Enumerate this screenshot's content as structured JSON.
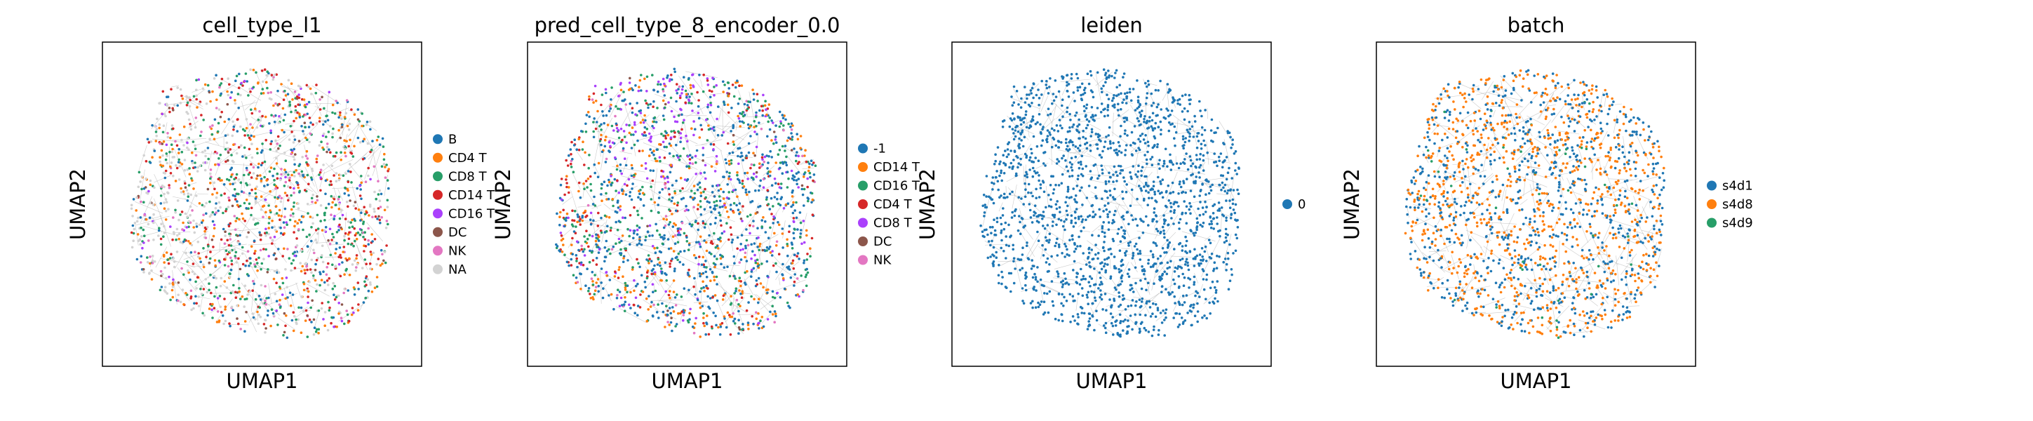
{
  "chart_data": [
    {
      "type": "scatter",
      "title": "cell_type_l1",
      "xlabel": "UMAP1",
      "ylabel": "UMAP2",
      "grid": false,
      "ticks": "none",
      "legend_placement": "right",
      "series": [
        {
          "name": "B",
          "color": "#1f77b4"
        },
        {
          "name": "CD4 T",
          "color": "#ff7f0e"
        },
        {
          "name": "CD8 T",
          "color": "#279e68"
        },
        {
          "name": "CD14 T",
          "color": "#d62728"
        },
        {
          "name": "CD16 T",
          "color": "#aa40fc"
        },
        {
          "name": "DC",
          "color": "#8c564b"
        },
        {
          "name": "NK",
          "color": "#e377c2"
        },
        {
          "name": "NA",
          "color": "#d3d3d3"
        }
      ]
    },
    {
      "type": "scatter",
      "title": "pred_cell_type_8_encoder_0.0",
      "xlabel": "UMAP1",
      "ylabel": "UMAP2",
      "grid": false,
      "ticks": "none",
      "legend_placement": "right",
      "series": [
        {
          "name": "-1",
          "color": "#1f77b4"
        },
        {
          "name": "CD14 T",
          "color": "#ff7f0e"
        },
        {
          "name": "CD16 T",
          "color": "#279e68"
        },
        {
          "name": "CD4 T",
          "color": "#d62728"
        },
        {
          "name": "CD8 T",
          "color": "#aa40fc"
        },
        {
          "name": "DC",
          "color": "#8c564b"
        },
        {
          "name": "NK",
          "color": "#e377c2"
        }
      ]
    },
    {
      "type": "scatter",
      "title": "leiden",
      "xlabel": "UMAP1",
      "ylabel": "UMAP2",
      "grid": false,
      "ticks": "none",
      "legend_placement": "right",
      "series": [
        {
          "name": "0",
          "color": "#1f77b4"
        }
      ]
    },
    {
      "type": "scatter",
      "title": "batch",
      "xlabel": "UMAP1",
      "ylabel": "UMAP2",
      "grid": false,
      "ticks": "none",
      "legend_placement": "right",
      "series": [
        {
          "name": "s4d1",
          "color": "#1f77b4"
        },
        {
          "name": "s4d8",
          "color": "#ff7f0e"
        },
        {
          "name": "s4d9",
          "color": "#279e68"
        }
      ]
    }
  ]
}
